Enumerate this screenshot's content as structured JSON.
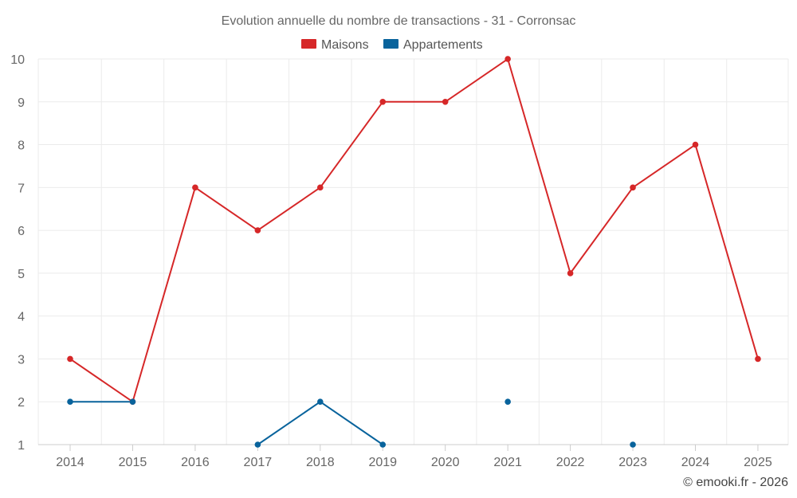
{
  "chart_data": {
    "type": "line",
    "title": "Evolution annuelle du nombre de transactions - 31 - Corronsac",
    "categories": [
      "2014",
      "2015",
      "2016",
      "2017",
      "2018",
      "2019",
      "2020",
      "2021",
      "2022",
      "2023",
      "2024",
      "2025"
    ],
    "y_ticks": [
      "1",
      "2",
      "3",
      "4",
      "5",
      "6",
      "7",
      "8",
      "9",
      "10"
    ],
    "ylim": [
      1,
      10
    ],
    "grid": true,
    "legend_position": "top-center",
    "series": [
      {
        "name": "Maisons",
        "color": "#d62728",
        "values": [
          3,
          2,
          7,
          6,
          7,
          9,
          9,
          10,
          5,
          7,
          8,
          3
        ]
      },
      {
        "name": "Appartements",
        "color": "#08639c",
        "values": [
          2,
          2,
          null,
          1,
          2,
          1,
          null,
          2,
          null,
          1,
          null,
          null
        ]
      }
    ],
    "credit": "© emooki.fr - 2026"
  }
}
